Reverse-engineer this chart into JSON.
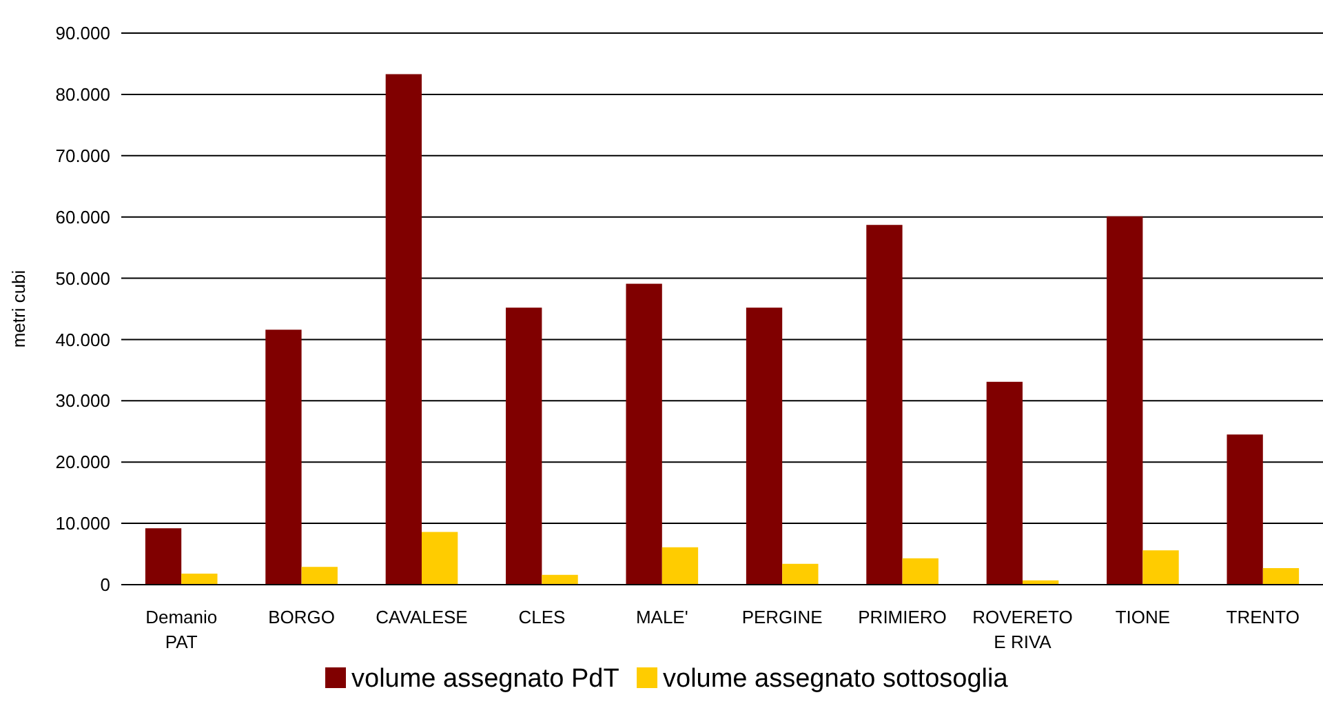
{
  "chart_data": {
    "type": "bar",
    "ylabel": "metri cubi",
    "categories": [
      "Demanio PAT",
      "BORGO",
      "CAVALESE",
      "CLES",
      "MALE'",
      "PERGINE",
      "PRIMIERO",
      "ROVERETO E RIVA",
      "TIONE",
      "TRENTO"
    ],
    "series": [
      {
        "name": "volume assegnato PdT",
        "color": "#800000",
        "values": [
          9200,
          41600,
          83300,
          45200,
          49100,
          45200,
          58700,
          33100,
          60100,
          24500
        ]
      },
      {
        "name": "volume assegnato sottosoglia",
        "color": "#ffcc00",
        "values": [
          1800,
          2900,
          8600,
          1600,
          6100,
          3400,
          4300,
          700,
          5600,
          2700
        ]
      }
    ],
    "ylim": [
      0,
      90000
    ],
    "yticks": [
      {
        "value": 0,
        "label": "0"
      },
      {
        "value": 10000,
        "label": "10.000"
      },
      {
        "value": 20000,
        "label": "20.000"
      },
      {
        "value": 30000,
        "label": "30.000"
      },
      {
        "value": 40000,
        "label": "40.000"
      },
      {
        "value": 50000,
        "label": "50.000"
      },
      {
        "value": 60000,
        "label": "60.000"
      },
      {
        "value": 70000,
        "label": "70.000"
      },
      {
        "value": 80000,
        "label": "80.000"
      },
      {
        "value": 90000,
        "label": "90.000"
      }
    ],
    "grid": "y",
    "legend": "bottom"
  }
}
